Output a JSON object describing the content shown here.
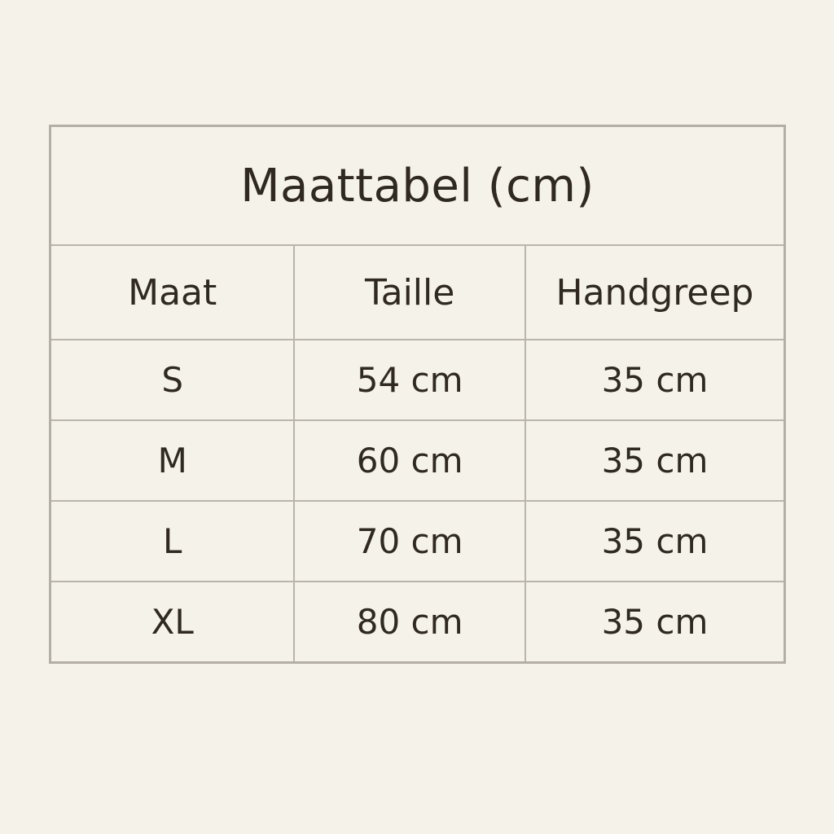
{
  "table": {
    "title": "Maattabel (cm)",
    "headers": [
      "Maat",
      "Taille",
      "Handgreep"
    ],
    "rows": [
      [
        "S",
        "54 cm",
        "35 cm"
      ],
      [
        "M",
        "60 cm",
        "35 cm"
      ],
      [
        "L",
        "70 cm",
        "35 cm"
      ],
      [
        "XL",
        "80 cm",
        "35 cm"
      ]
    ]
  },
  "colors": {
    "background": "#f5f2ea",
    "border": "#b3afa7",
    "text": "#2f2922"
  }
}
